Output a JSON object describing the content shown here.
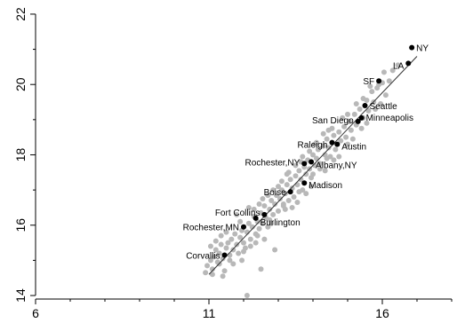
{
  "chart_data": {
    "type": "scatter",
    "title": "",
    "xlabel": "",
    "ylabel": "",
    "xlim": [
      6,
      18
    ],
    "ylim": [
      13.9,
      22.2
    ],
    "x_ticks": [
      6,
      11,
      16
    ],
    "y_ticks": [
      14,
      16,
      18,
      20,
      22
    ],
    "grid": false,
    "fit_line": {
      "x1": 11.0,
      "y1": 14.6,
      "x2": 17.0,
      "y2": 20.8,
      "color": "#333333"
    },
    "colors": {
      "background_points": "#b8b8b8",
      "highlighted_points": "#000000",
      "axis": "#000000"
    },
    "highlighted": [
      {
        "label": "NY",
        "x": 16.85,
        "y": 21.05
      },
      {
        "label": "LA",
        "x": 16.75,
        "y": 20.6
      },
      {
        "label": "SF",
        "x": 15.9,
        "y": 20.1
      },
      {
        "label": "Seattle",
        "x": 15.5,
        "y": 19.4
      },
      {
        "label": "Minneapolis",
        "x": 15.4,
        "y": 19.05
      },
      {
        "label": "San Diego",
        "x": 15.3,
        "y": 18.95
      },
      {
        "label": "Raleigh",
        "x": 14.55,
        "y": 18.35
      },
      {
        "label": "Austin",
        "x": 14.7,
        "y": 18.3
      },
      {
        "label": "Rochester,NY",
        "x": 13.75,
        "y": 17.75
      },
      {
        "label": "Albany,NY",
        "x": 13.95,
        "y": 17.8
      },
      {
        "label": "Madison",
        "x": 13.75,
        "y": 17.2
      },
      {
        "label": "Boise",
        "x": 13.35,
        "y": 16.95
      },
      {
        "label": "Fort Collins",
        "x": 12.6,
        "y": 16.3
      },
      {
        "label": "Burlington",
        "x": 12.35,
        "y": 16.2
      },
      {
        "label": "Rochester,MN",
        "x": 12.0,
        "y": 15.95
      },
      {
        "label": "Corvallis",
        "x": 11.45,
        "y": 15.15
      }
    ],
    "others": [
      [
        10.95,
        14.85
      ],
      [
        11.05,
        15.0
      ],
      [
        11.1,
        14.75
      ],
      [
        11.15,
        15.1
      ],
      [
        11.2,
        15.3
      ],
      [
        11.25,
        14.95
      ],
      [
        11.3,
        15.2
      ],
      [
        11.35,
        15.45
      ],
      [
        11.4,
        15.05
      ],
      [
        11.45,
        14.7
      ],
      [
        11.5,
        15.35
      ],
      [
        11.55,
        15.5
      ],
      [
        11.6,
        15.15
      ],
      [
        11.65,
        15.6
      ],
      [
        11.7,
        15.3
      ],
      [
        11.75,
        15.75
      ],
      [
        11.8,
        15.45
      ],
      [
        11.85,
        15.2
      ],
      [
        11.9,
        15.65
      ],
      [
        11.95,
        15.85
      ],
      [
        12.0,
        15.5
      ],
      [
        12.05,
        15.35
      ],
      [
        12.1,
        15.8
      ],
      [
        12.15,
        16.05
      ],
      [
        12.2,
        15.6
      ],
      [
        12.25,
        15.95
      ],
      [
        12.3,
        16.25
      ],
      [
        12.35,
        15.75
      ],
      [
        12.4,
        16.1
      ],
      [
        12.45,
        15.9
      ],
      [
        12.5,
        16.35
      ],
      [
        12.55,
        16.05
      ],
      [
        12.6,
        16.55
      ],
      [
        12.65,
        16.2
      ],
      [
        12.7,
        15.95
      ],
      [
        12.75,
        16.45
      ],
      [
        12.8,
        16.7
      ],
      [
        12.85,
        16.3
      ],
      [
        12.9,
        16.6
      ],
      [
        12.95,
        16.85
      ],
      [
        13.0,
        16.4
      ],
      [
        13.05,
        16.75
      ],
      [
        13.1,
        17.0
      ],
      [
        13.15,
        16.55
      ],
      [
        13.2,
        16.9
      ],
      [
        13.25,
        17.15
      ],
      [
        13.3,
        16.7
      ],
      [
        13.35,
        17.3
      ],
      [
        13.4,
        17.05
      ],
      [
        13.45,
        16.8
      ],
      [
        13.5,
        17.4
      ],
      [
        13.55,
        17.15
      ],
      [
        13.6,
        17.55
      ],
      [
        13.65,
        17.3
      ],
      [
        13.7,
        17.0
      ],
      [
        13.75,
        17.65
      ],
      [
        13.8,
        17.45
      ],
      [
        13.85,
        17.85
      ],
      [
        13.9,
        17.6
      ],
      [
        13.95,
        17.35
      ],
      [
        14.0,
        18.0
      ],
      [
        14.05,
        17.7
      ],
      [
        14.1,
        17.9
      ],
      [
        14.15,
        18.15
      ],
      [
        14.2,
        17.75
      ],
      [
        14.3,
        18.25
      ],
      [
        14.35,
        18.0
      ],
      [
        14.4,
        18.45
      ],
      [
        14.45,
        18.2
      ],
      [
        14.5,
        17.95
      ],
      [
        14.6,
        18.55
      ],
      [
        14.65,
        18.15
      ],
      [
        14.75,
        18.65
      ],
      [
        14.8,
        18.4
      ],
      [
        14.9,
        18.8
      ],
      [
        14.95,
        18.5
      ],
      [
        15.05,
        18.95
      ],
      [
        15.1,
        18.7
      ],
      [
        15.2,
        19.15
      ],
      [
        15.25,
        18.85
      ],
      [
        15.35,
        19.3
      ],
      [
        15.45,
        19.05
      ],
      [
        15.55,
        19.55
      ],
      [
        15.6,
        19.25
      ],
      [
        15.7,
        19.8
      ],
      [
        15.75,
        19.5
      ],
      [
        15.85,
        19.9
      ],
      [
        16.0,
        20.05
      ],
      [
        16.1,
        19.7
      ],
      [
        16.2,
        20.1
      ],
      [
        11.3,
        14.9
      ],
      [
        11.6,
        15.0
      ],
      [
        12.0,
        15.25
      ],
      [
        12.4,
        15.7
      ],
      [
        12.8,
        16.05
      ],
      [
        13.2,
        16.45
      ],
      [
        13.6,
        16.95
      ],
      [
        14.0,
        17.45
      ],
      [
        14.4,
        17.9
      ],
      [
        11.2,
        15.55
      ],
      [
        11.5,
        15.8
      ],
      [
        11.9,
        16.1
      ],
      [
        12.3,
        16.45
      ],
      [
        12.7,
        16.85
      ],
      [
        13.1,
        17.25
      ],
      [
        13.5,
        17.7
      ],
      [
        13.9,
        18.1
      ],
      [
        14.3,
        18.6
      ],
      [
        11.1,
        14.6
      ],
      [
        11.7,
        14.9
      ],
      [
        12.2,
        15.4
      ],
      [
        12.6,
        15.6
      ],
      [
        13.4,
        16.5
      ],
      [
        13.8,
        16.9
      ],
      [
        14.2,
        17.6
      ],
      [
        14.6,
        17.85
      ],
      [
        15.0,
        18.3
      ],
      [
        15.4,
        18.75
      ],
      [
        15.8,
        19.3
      ],
      [
        12.1,
        14.0
      ],
      [
        12.5,
        14.75
      ],
      [
        12.9,
        15.3
      ],
      [
        11.05,
        15.4
      ],
      [
        11.35,
        15.7
      ],
      [
        11.8,
        16.3
      ],
      [
        12.15,
        16.5
      ],
      [
        12.55,
        16.75
      ],
      [
        13.0,
        17.1
      ],
      [
        13.3,
        17.5
      ],
      [
        13.65,
        17.8
      ],
      [
        14.05,
        18.3
      ],
      [
        14.45,
        18.7
      ],
      [
        14.85,
        19.05
      ],
      [
        15.25,
        19.45
      ],
      [
        15.65,
        19.95
      ],
      [
        16.05,
        20.35
      ],
      [
        16.3,
        20.4
      ],
      [
        16.45,
        20.55
      ],
      [
        10.9,
        14.65
      ],
      [
        11.4,
        14.55
      ],
      [
        11.95,
        15.0
      ],
      [
        12.35,
        15.5
      ],
      [
        12.75,
        16.15
      ],
      [
        13.15,
        16.6
      ],
      [
        13.55,
        16.65
      ],
      [
        13.95,
        17.1
      ],
      [
        14.35,
        17.55
      ],
      [
        14.75,
        17.95
      ],
      [
        15.15,
        18.45
      ],
      [
        15.55,
        18.9
      ],
      [
        15.95,
        19.45
      ],
      [
        12.45,
        16.6
      ],
      [
        12.85,
        17.0
      ],
      [
        13.25,
        17.45
      ],
      [
        13.7,
        17.95
      ],
      [
        14.1,
        18.35
      ],
      [
        14.55,
        18.75
      ],
      [
        15.0,
        19.15
      ],
      [
        15.45,
        19.6
      ],
      [
        15.9,
        20.0
      ]
    ]
  }
}
